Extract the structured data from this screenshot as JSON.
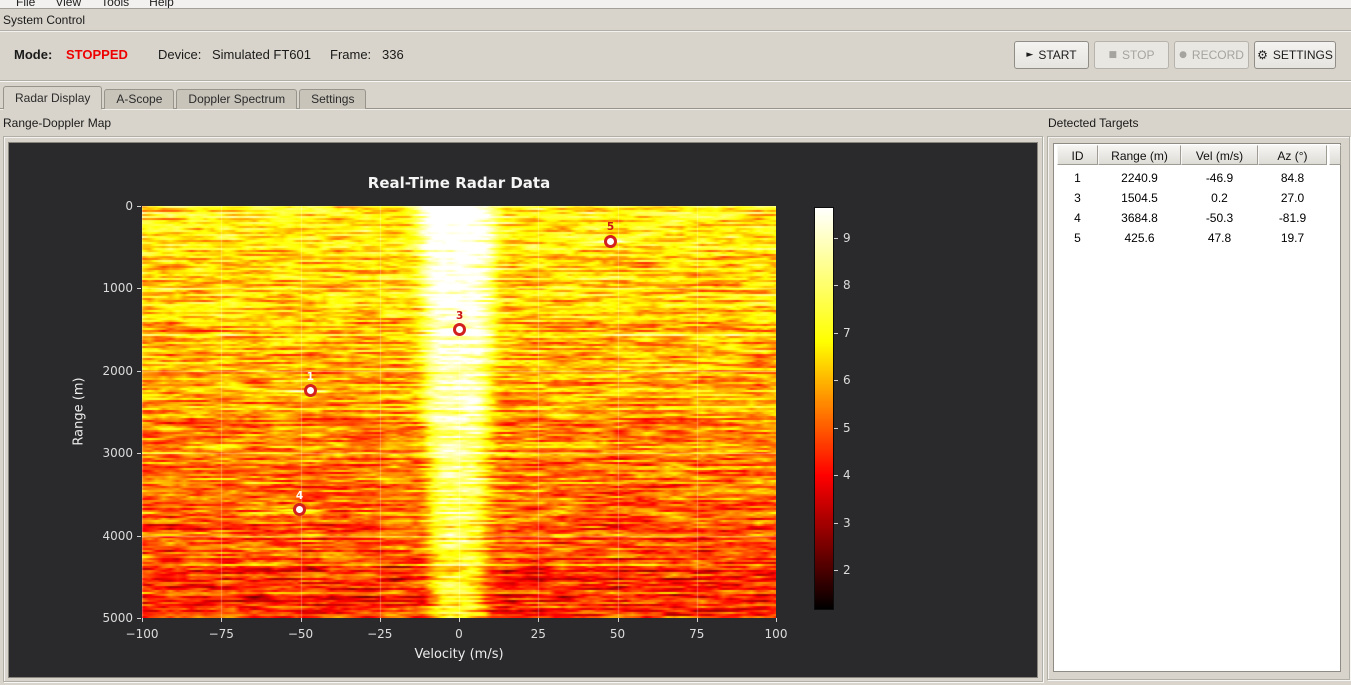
{
  "menu": {
    "items": [
      "File",
      "View",
      "Tools",
      "Help"
    ]
  },
  "system_control": {
    "title": "System Control",
    "mode_label": "Mode:",
    "mode_value": "STOPPED",
    "mode_color": "#ee0000",
    "device_label": "Device:",
    "device_value": "Simulated FT601",
    "frame_label": "Frame:",
    "frame_value": "336",
    "buttons": [
      {
        "label": "START",
        "icon": "play",
        "glyph": "►",
        "enabled": true,
        "width": 75
      },
      {
        "label": "STOP",
        "icon": "stop",
        "glyph": "■",
        "enabled": false,
        "width": 75
      },
      {
        "label": "RECORD",
        "icon": "record",
        "glyph": "●",
        "enabled": false,
        "width": 75
      },
      {
        "label": "SETTINGS",
        "icon": "gear",
        "glyph": "⚙",
        "enabled": true,
        "width": 82
      }
    ]
  },
  "tabs": [
    {
      "label": "Radar Display",
      "active": true
    },
    {
      "label": "A-Scope",
      "active": false
    },
    {
      "label": "Doppler Spectrum",
      "active": false
    },
    {
      "label": "Settings",
      "active": false
    }
  ],
  "range_doppler": {
    "group_title": "Range-Doppler Map"
  },
  "detected_targets": {
    "group_title": "Detected Targets",
    "columns": [
      "ID",
      "Range (m)",
      "Vel (m/s)",
      "Az (°)"
    ],
    "rows": [
      [
        "1",
        "2240.9",
        "-46.9",
        "84.8"
      ],
      [
        "3",
        "1504.5",
        "0.2",
        "27.0"
      ],
      [
        "4",
        "3684.8",
        "-50.3",
        "-81.9"
      ],
      [
        "5",
        "425.6",
        "47.8",
        "19.7"
      ]
    ]
  },
  "chart_data": {
    "type": "heatmap",
    "title": "Real-Time Radar Data",
    "xlabel": "Velocity (m/s)",
    "ylabel": "Range (m)",
    "xlim": [
      -100,
      100
    ],
    "ylim": [
      0,
      5000
    ],
    "y_inverted": true,
    "xticks": [
      -100,
      -75,
      -50,
      -25,
      0,
      25,
      50,
      75,
      100
    ],
    "yticks": [
      0,
      1000,
      2000,
      3000,
      4000,
      5000
    ],
    "grid": true,
    "colormap": "hot",
    "colorbar_ticks": [
      2,
      3,
      4,
      5,
      6,
      7,
      8,
      9
    ],
    "color_scale": [
      1.2,
      9.65
    ],
    "background": "#2a292b",
    "clutter_band": {
      "center_velocity_ms": -0.5,
      "half_width_ms_top": 12,
      "half_width_ms_bottom": 8.5,
      "intensity_top": 10.6,
      "intensity_bottom": 6.9
    },
    "noise_floor": {
      "top": 6.9,
      "bottom": 4.5
    },
    "targets": [
      {
        "id": "1",
        "range_m": 2240.9,
        "vel_ms": -46.9,
        "az_deg": 84.8,
        "label_color": "#ffffff"
      },
      {
        "id": "3",
        "range_m": 1504.5,
        "vel_ms": 0.2,
        "az_deg": 27.0,
        "label_color": "#cc1414"
      },
      {
        "id": "4",
        "range_m": 3684.8,
        "vel_ms": -50.3,
        "az_deg": -81.9,
        "label_color": "#ffffff"
      },
      {
        "id": "5",
        "range_m": 425.6,
        "vel_ms": 47.8,
        "az_deg": 19.7,
        "label_color": "#cc1414"
      }
    ]
  }
}
